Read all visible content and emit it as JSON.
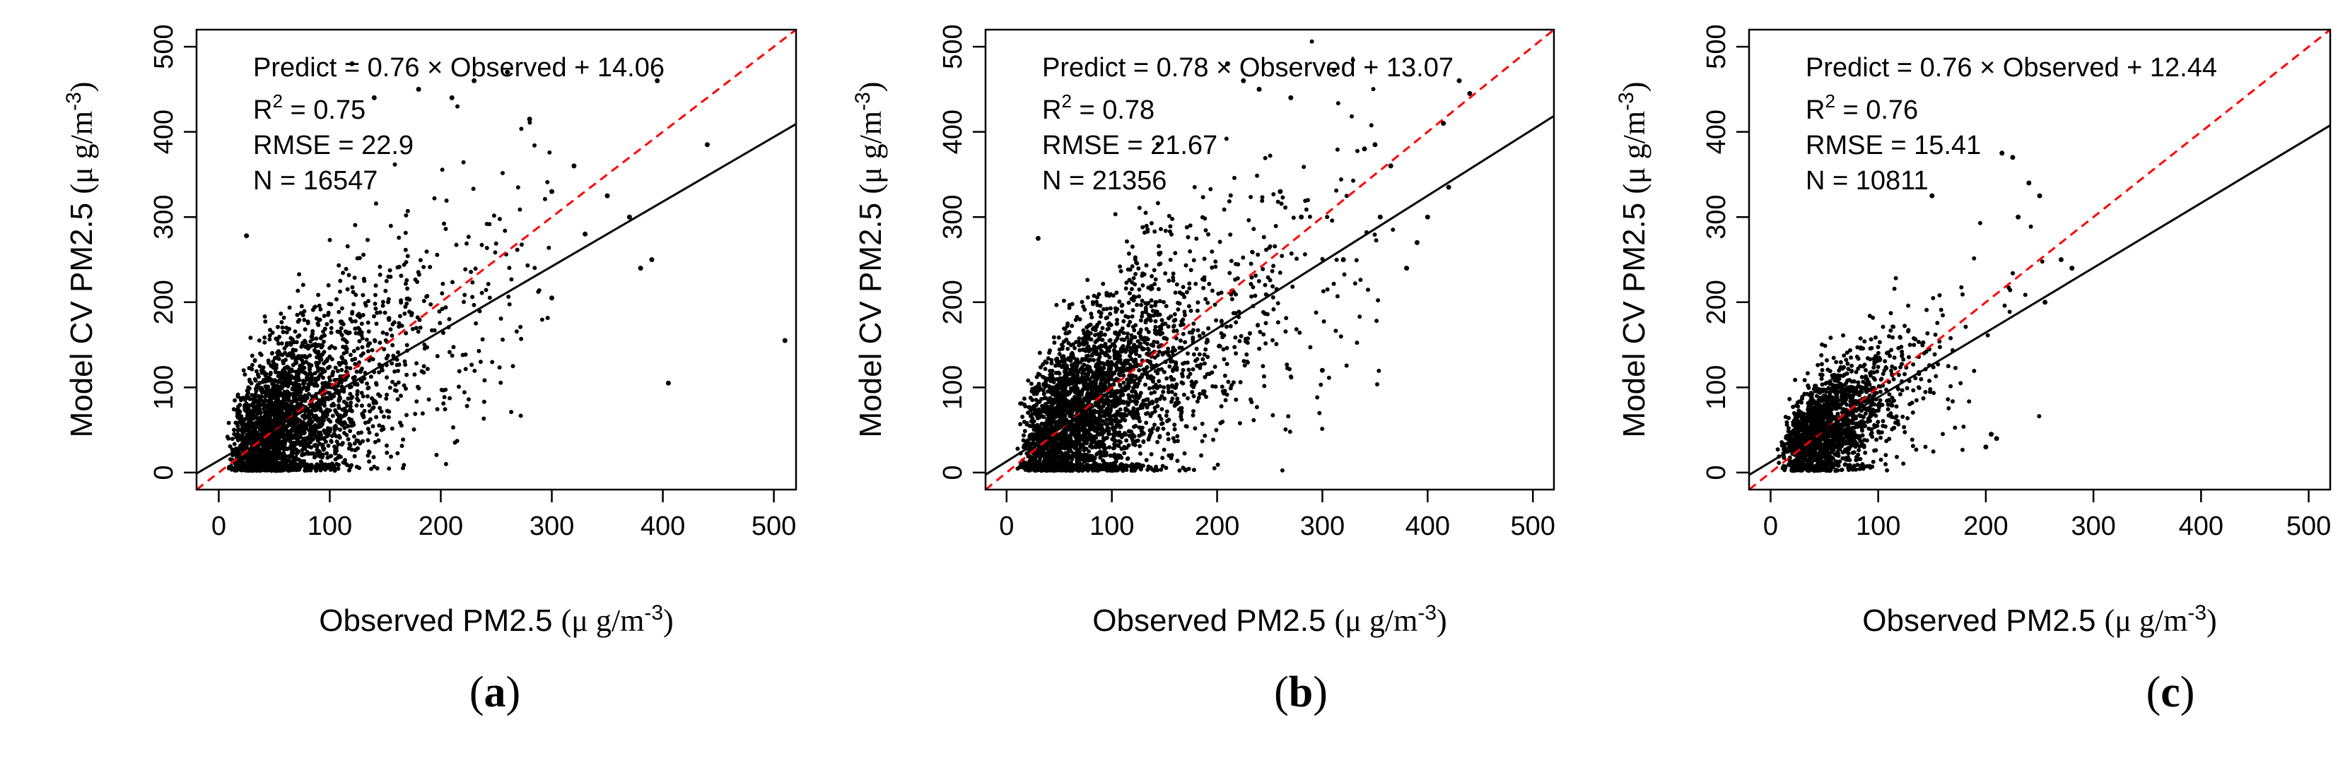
{
  "colors": {
    "points": "#000000",
    "fit_line": "#000000",
    "identity_line": "#ff0000",
    "axes": "#000000"
  },
  "chart_data": [
    {
      "type": "scatter",
      "panel_label": "a",
      "xlabel": "Observed PM2.5",
      "xlabel_units": "(μ g/m",
      "ylabel": "Model CV PM2.5",
      "ylabel_units": "(μ g/m",
      "unit_exponent": "-3",
      "xlim": [
        -20,
        520
      ],
      "ylim": [
        -20,
        520
      ],
      "xticks": [
        0,
        100,
        200,
        300,
        400,
        500
      ],
      "yticks": [
        0,
        100,
        200,
        300,
        400,
        500
      ],
      "regression": {
        "slope": 0.76,
        "intercept": 14.06
      },
      "identity_line": true,
      "annotations": {
        "equation": "Predict = 0.76 × Observed + 14.06",
        "r2_label": "R",
        "r2_sup": "2",
        "r2_value": " = 0.75",
        "rmse": "RMSE = 22.9",
        "n": "N = 16547"
      },
      "n_points": 16547,
      "outliers": [
        [
          510,
          155
        ],
        [
          405,
          105
        ],
        [
          440,
          385
        ],
        [
          370,
          300
        ],
        [
          390,
          250
        ],
        [
          300,
          330
        ],
        [
          230,
          460
        ],
        [
          260,
          470
        ],
        [
          280,
          415
        ],
        [
          320,
          360
        ],
        [
          120,
          480
        ],
        [
          140,
          440
        ],
        [
          25,
          278
        ],
        [
          350,
          325
        ],
        [
          380,
          240
        ],
        [
          210,
          440
        ],
        [
          300,
          205
        ],
        [
          330,
          280
        ],
        [
          180,
          450
        ],
        [
          395,
          460
        ]
      ],
      "cluster": {
        "x_log_mean": 4.15,
        "x_log_sd": 0.62,
        "x_max": 300,
        "resid_sd": 30,
        "resid_scale": 0.18
      }
    },
    {
      "type": "scatter",
      "panel_label": "b",
      "xlabel": "Observed PM2.5",
      "xlabel_units": "(μ g/m",
      "ylabel": "Model CV PM2.5",
      "ylabel_units": "(μ g/m",
      "unit_exponent": "-3",
      "xlim": [
        -20,
        520
      ],
      "ylim": [
        -20,
        520
      ],
      "xticks": [
        0,
        100,
        200,
        300,
        400,
        500
      ],
      "yticks": [
        0,
        100,
        200,
        300,
        400,
        500
      ],
      "regression": {
        "slope": 0.78,
        "intercept": 13.07
      },
      "identity_line": true,
      "annotations": {
        "equation": "Predict = 0.78 × Observed + 13.07",
        "r2_label": "R",
        "r2_sup": "2",
        "r2_value": " = 0.78",
        "rmse": "RMSE = 21.67",
        "n": "N = 21356"
      },
      "n_points": 21356,
      "outliers": [
        [
          430,
          460
        ],
        [
          440,
          445
        ],
        [
          415,
          410
        ],
        [
          420,
          335
        ],
        [
          400,
          300
        ],
        [
          355,
          300
        ],
        [
          300,
          120
        ],
        [
          380,
          240
        ],
        [
          225,
          460
        ],
        [
          240,
          450
        ],
        [
          210,
          480
        ],
        [
          30,
          275
        ],
        [
          350,
          385
        ],
        [
          365,
          360
        ],
        [
          260,
          330
        ],
        [
          340,
          380
        ],
        [
          390,
          270
        ],
        [
          320,
          250
        ],
        [
          270,
          440
        ],
        [
          280,
          300
        ]
      ],
      "cluster": {
        "x_log_mean": 4.35,
        "x_log_sd": 0.62,
        "x_max": 380,
        "resid_sd": 30,
        "resid_scale": 0.18
      }
    },
    {
      "type": "scatter",
      "panel_label": "c",
      "xlabel": "Observed PM2.5",
      "xlabel_units": "(μ g/m",
      "ylabel": "Model CV PM2.5",
      "ylabel_units": "(μ g/m",
      "unit_exponent": "-3",
      "xlim": [
        -20,
        520
      ],
      "ylim": [
        -20,
        520
      ],
      "xticks": [
        0,
        100,
        200,
        300,
        400,
        500
      ],
      "yticks": [
        0,
        100,
        200,
        300,
        400,
        500
      ],
      "regression": {
        "slope": 0.76,
        "intercept": 12.44
      },
      "identity_line": true,
      "annotations": {
        "equation": "Predict = 0.76 × Observed + 12.44",
        "r2_label": "R",
        "r2_sup": "2",
        "r2_value": " = 0.76",
        "rmse": "RMSE = 15.41",
        "n": "N = 10811"
      },
      "n_points": 10811,
      "outliers": [
        [
          215,
          375
        ],
        [
          225,
          370
        ],
        [
          240,
          340
        ],
        [
          250,
          325
        ],
        [
          205,
          45
        ],
        [
          200,
          30
        ],
        [
          270,
          250
        ],
        [
          280,
          240
        ],
        [
          255,
          200
        ],
        [
          150,
          325
        ],
        [
          230,
          300
        ],
        [
          210,
          40
        ]
      ],
      "cluster": {
        "x_log_mean": 3.95,
        "x_log_sd": 0.55,
        "x_max": 260,
        "resid_sd": 22,
        "resid_scale": 0.16
      }
    }
  ]
}
